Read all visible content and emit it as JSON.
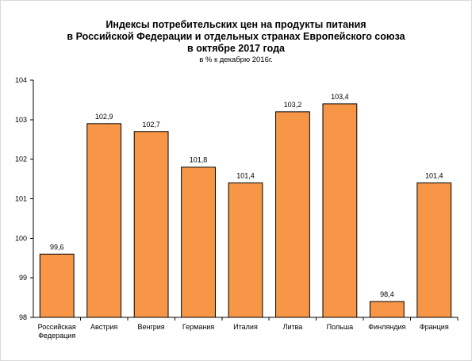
{
  "chart_data": {
    "type": "bar",
    "title_lines": [
      "Индексы потребительских цен на продукты питания",
      "в Российской Федерации и отдельных странах Европейского союза",
      "в октябре 2017 года"
    ],
    "subtitle": "в % к декабрю 2016г.",
    "categories": [
      [
        "Российская",
        "Федерация"
      ],
      [
        "Австрия"
      ],
      [
        "Венгрия"
      ],
      [
        "Германия"
      ],
      [
        "Италия"
      ],
      [
        "Литва"
      ],
      [
        "Польша"
      ],
      [
        "Финляндия"
      ],
      [
        "Франция"
      ]
    ],
    "values": [
      99.6,
      102.9,
      102.7,
      101.8,
      101.4,
      103.2,
      103.4,
      98.4,
      101.4
    ],
    "data_labels": [
      "99,6",
      "102,9",
      "102,7",
      "101,8",
      "101,4",
      "103,2",
      "103,4",
      "98,4",
      "101,4"
    ],
    "yticks": [
      98,
      99,
      100,
      101,
      102,
      103,
      104
    ],
    "ylim": [
      98,
      104
    ],
    "grid": false,
    "legend": "none",
    "bar_color": "#f79646",
    "bar_edge_color": "#000000"
  }
}
